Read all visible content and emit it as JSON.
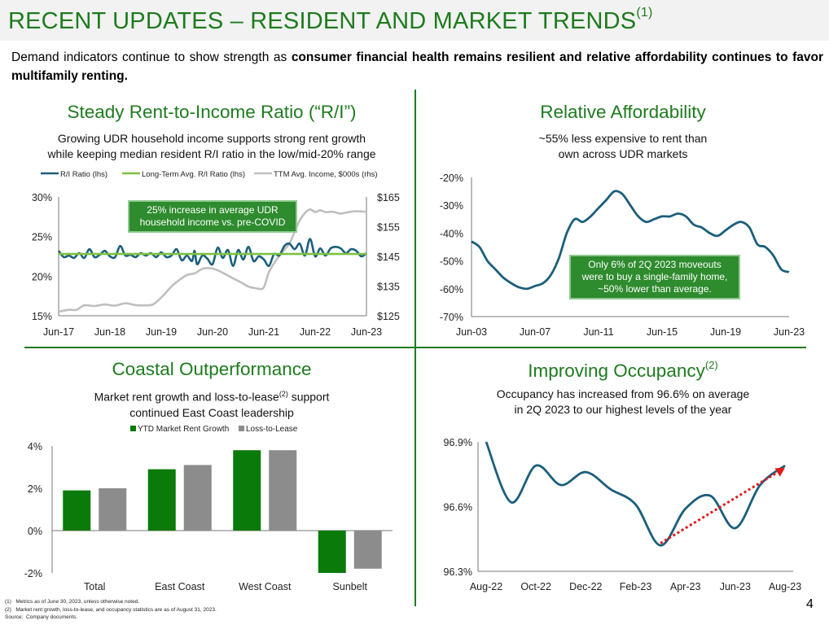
{
  "header": {
    "title": "RECENT UPDATES – RESIDENT AND MARKET TRENDS",
    "title_sup": "(1)",
    "intro_plain": "Demand indicators continue to show strength as ",
    "intro_bold": "consumer financial health remains resilient and relative affordability continues to favor multifamily renting."
  },
  "colors": {
    "green": "#1e7b1e",
    "teal": "#1b5e7b",
    "light_green": "#7cc242",
    "gray": "#bfbfbf",
    "bar_green": "#0a7a0a",
    "bar_gray": "#8c8c8c",
    "red": "#e0191b"
  },
  "panels": {
    "ri": {
      "title": "Steady Rent-to-Income Ratio (“R/I”)",
      "subtitle_1": "Growing UDR household income supports strong rent growth",
      "subtitle_2": "while keeping median resident R/I ratio in the low/mid-20% range",
      "callout_1": "25% increase in average UDR",
      "callout_2": "household income vs. pre-COVID"
    },
    "afford": {
      "title": "Relative Affordability",
      "subtitle_1": "~55% less expensive to rent than",
      "subtitle_2": "own across UDR markets",
      "callout_1": "Only 6% of 2Q 2023 moveouts",
      "callout_2": "were to buy a single-family home,",
      "callout_3": "~50% lower than average."
    },
    "coastal": {
      "title": "Coastal Outperformance",
      "subtitle_1a": "Market rent growth and loss-to-lease",
      "subtitle_sup": "(2)",
      "subtitle_1b": " support",
      "subtitle_2": "continued East Coast leadership"
    },
    "occ": {
      "title": "Improving Occupancy",
      "title_sup": "(2)",
      "subtitle_1": "Occupancy has increased from 96.6% on average",
      "subtitle_2": "in 2Q 2023 to our highest levels of the year"
    }
  },
  "chart_data": [
    {
      "type": "line",
      "legend": [
        "R/I Ratio (lhs)",
        "Long-Term Avg. R/I Ratio (lhs)",
        "TTM Avg. Income, $000s (rhs)"
      ],
      "x_ticks": [
        "Jun-17",
        "Jun-18",
        "Jun-19",
        "Jun-20",
        "Jun-21",
        "Jun-22",
        "Jun-23"
      ],
      "y_left_ticks": [
        "30%",
        "25%",
        "20%",
        "15%"
      ],
      "y_right_ticks": [
        "$165",
        "$155",
        "$145",
        "$135",
        "$125"
      ],
      "ylim_left": [
        15,
        30
      ],
      "ylim_right": [
        125,
        165
      ],
      "xlim": [
        2017.5,
        2023.5
      ],
      "series": [
        {
          "name": "R/I Ratio (lhs)",
          "axis": "left",
          "points": [
            [
              2017.5,
              23.2
            ],
            [
              2017.6,
              22.4
            ],
            [
              2017.7,
              22.6
            ],
            [
              2017.8,
              22.3
            ],
            [
              2017.9,
              22.9
            ],
            [
              2018.0,
              22.3
            ],
            [
              2018.1,
              23.4
            ],
            [
              2018.2,
              22.4
            ],
            [
              2018.3,
              22.7
            ],
            [
              2018.4,
              23.2
            ],
            [
              2018.5,
              22.5
            ],
            [
              2018.6,
              22.4
            ],
            [
              2018.7,
              23.8
            ],
            [
              2018.8,
              22.6
            ],
            [
              2018.9,
              22.7
            ],
            [
              2019.0,
              22.4
            ],
            [
              2019.1,
              22.9
            ],
            [
              2019.2,
              22.6
            ],
            [
              2019.3,
              22.9
            ],
            [
              2019.4,
              22.4
            ],
            [
              2019.5,
              23.0
            ],
            [
              2019.6,
              22.4
            ],
            [
              2019.7,
              22.6
            ],
            [
              2019.8,
              23.4
            ],
            [
              2019.9,
              22.0
            ],
            [
              2020.0,
              22.6
            ],
            [
              2020.1,
              21.9
            ],
            [
              2020.15,
              23.2
            ],
            [
              2020.2,
              21.5
            ],
            [
              2020.3,
              22.6
            ],
            [
              2020.4,
              22.2
            ],
            [
              2020.5,
              21.5
            ],
            [
              2020.6,
              23.6
            ],
            [
              2020.7,
              22.3
            ],
            [
              2020.8,
              23.3
            ],
            [
              2020.9,
              21.3
            ],
            [
              2021.0,
              23.3
            ],
            [
              2021.1,
              22.1
            ],
            [
              2021.2,
              23.7
            ],
            [
              2021.3,
              21.9
            ],
            [
              2021.4,
              22.5
            ],
            [
              2021.5,
              22.1
            ],
            [
              2021.6,
              21.3
            ],
            [
              2021.7,
              22.8
            ],
            [
              2021.8,
              22.6
            ],
            [
              2021.9,
              23.8
            ],
            [
              2022.0,
              24.1
            ],
            [
              2022.1,
              23.4
            ],
            [
              2022.2,
              24.1
            ],
            [
              2022.3,
              22.6
            ],
            [
              2022.4,
              24.7
            ],
            [
              2022.5,
              22.5
            ],
            [
              2022.6,
              23.5
            ],
            [
              2022.7,
              22.6
            ],
            [
              2022.8,
              23.5
            ],
            [
              2022.9,
              23.7
            ],
            [
              2023.0,
              23.5
            ],
            [
              2023.1,
              22.9
            ],
            [
              2023.2,
              23.4
            ],
            [
              2023.3,
              23.2
            ],
            [
              2023.4,
              22.5
            ],
            [
              2023.5,
              22.9
            ]
          ]
        },
        {
          "name": "Long-Term Avg. R/I Ratio (lhs)",
          "axis": "left",
          "points": [
            [
              2017.5,
              22.8
            ],
            [
              2023.5,
              22.8
            ]
          ]
        },
        {
          "name": "TTM Avg. Income, $000s (rhs)",
          "axis": "right",
          "points": [
            [
              2017.5,
              126.4
            ],
            [
              2017.7,
              127.0
            ],
            [
              2017.85,
              127.0
            ],
            [
              2018.0,
              128.5
            ],
            [
              2018.2,
              128.3
            ],
            [
              2018.4,
              128.8
            ],
            [
              2018.6,
              128.4
            ],
            [
              2018.8,
              129.2
            ],
            [
              2019.0,
              128.6
            ],
            [
              2019.2,
              128.5
            ],
            [
              2019.35,
              128.9
            ],
            [
              2019.55,
              132.0
            ],
            [
              2019.7,
              134.9
            ],
            [
              2019.85,
              137.0
            ],
            [
              2020.0,
              138.7
            ],
            [
              2020.15,
              139.3
            ],
            [
              2020.3,
              140.8
            ],
            [
              2020.45,
              141.0
            ],
            [
              2020.6,
              140.3
            ],
            [
              2020.75,
              139.0
            ],
            [
              2020.9,
              137.6
            ],
            [
              2021.05,
              136.3
            ],
            [
              2021.2,
              134.8
            ],
            [
              2021.3,
              134.4
            ],
            [
              2021.4,
              134.1
            ],
            [
              2021.5,
              134.6
            ],
            [
              2021.6,
              139.7
            ],
            [
              2021.75,
              144.0
            ],
            [
              2021.9,
              147.2
            ],
            [
              2022.0,
              149.3
            ],
            [
              2022.1,
              153.2
            ],
            [
              2022.2,
              157.1
            ],
            [
              2022.3,
              159.6
            ],
            [
              2022.4,
              160.8
            ],
            [
              2022.5,
              159.9
            ],
            [
              2022.6,
              160.5
            ],
            [
              2022.7,
              159.9
            ],
            [
              2022.85,
              160.0
            ],
            [
              2023.0,
              159.4
            ],
            [
              2023.15,
              159.9
            ],
            [
              2023.3,
              160.2
            ],
            [
              2023.5,
              160.0
            ]
          ]
        }
      ]
    },
    {
      "type": "line",
      "x_ticks": [
        "Jun-03",
        "Jun-07",
        "Jun-11",
        "Jun-15",
        "Jun-19",
        "Jun-23"
      ],
      "y_ticks": [
        "-20%",
        "-30%",
        "-40%",
        "-50%",
        "-60%",
        "-70%"
      ],
      "ylim": [
        -70,
        -20
      ],
      "xlim": [
        2003.5,
        2023.5
      ],
      "series": [
        {
          "name": "",
          "points": [
            [
              2003.5,
              -43
            ],
            [
              2004.0,
              -45
            ],
            [
              2004.5,
              -50
            ],
            [
              2005.0,
              -53
            ],
            [
              2005.5,
              -56
            ],
            [
              2006.0,
              -58
            ],
            [
              2006.5,
              -59.5
            ],
            [
              2007.0,
              -60
            ],
            [
              2007.5,
              -59
            ],
            [
              2008.0,
              -58
            ],
            [
              2008.5,
              -55
            ],
            [
              2009.0,
              -49
            ],
            [
              2009.5,
              -40
            ],
            [
              2010.0,
              -35
            ],
            [
              2010.5,
              -36
            ],
            [
              2011.0,
              -34
            ],
            [
              2011.5,
              -31
            ],
            [
              2012.0,
              -28
            ],
            [
              2012.5,
              -25
            ],
            [
              2013.0,
              -26
            ],
            [
              2013.5,
              -30
            ],
            [
              2014.0,
              -34
            ],
            [
              2014.5,
              -36
            ],
            [
              2015.0,
              -35
            ],
            [
              2015.5,
              -34
            ],
            [
              2016.0,
              -34
            ],
            [
              2016.5,
              -33
            ],
            [
              2017.0,
              -34
            ],
            [
              2017.5,
              -37
            ],
            [
              2018.0,
              -38
            ],
            [
              2018.5,
              -40
            ],
            [
              2019.0,
              -41
            ],
            [
              2019.5,
              -39
            ],
            [
              2020.0,
              -37
            ],
            [
              2020.5,
              -36
            ],
            [
              2021.0,
              -38
            ],
            [
              2021.5,
              -44
            ],
            [
              2022.0,
              -45
            ],
            [
              2022.5,
              -48
            ],
            [
              2023.0,
              -53
            ],
            [
              2023.5,
              -54
            ]
          ]
        }
      ]
    },
    {
      "type": "bar",
      "legend": [
        "YTD Market Rent Growth",
        "Loss-to-Lease"
      ],
      "categories": [
        "Total",
        "East Coast",
        "West Coast",
        "Sunbelt"
      ],
      "y_ticks": [
        "4%",
        "2%",
        "0%",
        "-2%"
      ],
      "ylim": [
        -2,
        4
      ],
      "series": [
        {
          "name": "YTD Market Rent Growth",
          "values": [
            1.9,
            2.9,
            3.8,
            -2.0
          ]
        },
        {
          "name": "Loss-to-Lease",
          "values": [
            2.0,
            3.1,
            3.8,
            -1.8
          ]
        }
      ]
    },
    {
      "type": "line",
      "x_ticks": [
        "Aug-22",
        "Oct-22",
        "Dec-22",
        "Feb-23",
        "Apr-23",
        "Jun-23",
        "Aug-23"
      ],
      "y_ticks": [
        "96.9%",
        "96.6%",
        "96.3%"
      ],
      "ylim": [
        96.3,
        96.9
      ],
      "xlim": [
        0,
        12
      ],
      "series": [
        {
          "name": "",
          "points": [
            [
              0,
              96.9
            ],
            [
              1,
              96.62
            ],
            [
              2,
              96.79
            ],
            [
              3,
              96.7
            ],
            [
              4,
              96.76
            ],
            [
              5,
              96.68
            ],
            [
              6,
              96.61
            ],
            [
              7,
              96.42
            ],
            [
              8,
              96.59
            ],
            [
              9,
              96.65
            ],
            [
              10,
              96.5
            ],
            [
              11,
              96.7
            ],
            [
              12,
              96.79
            ]
          ]
        }
      ],
      "trend_arrow": [
        [
          7,
          96.43
        ],
        [
          12,
          96.78
        ]
      ]
    }
  ]
}
